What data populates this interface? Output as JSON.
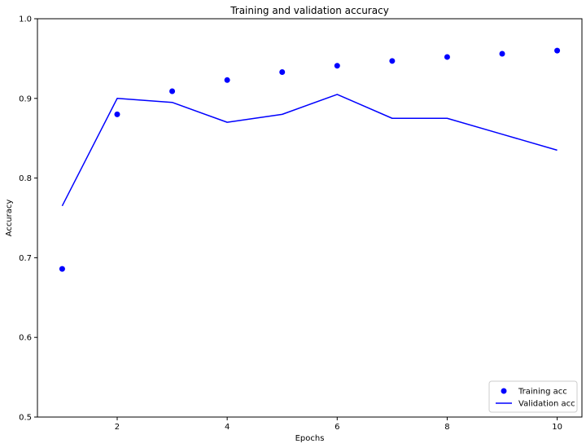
{
  "chart_data": {
    "type": "scatter",
    "title": "Training and validation accuracy",
    "xlabel": "Epochs",
    "ylabel": "Accuracy",
    "xlim": [
      0.55,
      10.45
    ],
    "ylim": [
      0.5,
      1.0
    ],
    "xticks": [
      2,
      4,
      6,
      8,
      10
    ],
    "yticks": [
      0.5,
      0.6,
      0.7,
      0.8,
      0.9,
      1.0
    ],
    "ytick_labels": [
      "0.5",
      "0.6",
      "0.7",
      "0.8",
      "0.9",
      "1.0"
    ],
    "grid": false,
    "legend_position": "bottom-right",
    "x": [
      1,
      2,
      3,
      4,
      5,
      6,
      7,
      8,
      9,
      10
    ],
    "series": [
      {
        "name": "Training acc",
        "kind": "scatter",
        "color": "#0000ff",
        "values": [
          0.686,
          0.88,
          0.909,
          0.923,
          0.933,
          0.941,
          0.947,
          0.952,
          0.956,
          0.96
        ]
      },
      {
        "name": "Validation acc",
        "kind": "line",
        "color": "#0000ff",
        "values": [
          0.765,
          0.9,
          0.895,
          0.87,
          0.88,
          0.905,
          0.875,
          0.875,
          0.855,
          0.835
        ]
      }
    ]
  }
}
